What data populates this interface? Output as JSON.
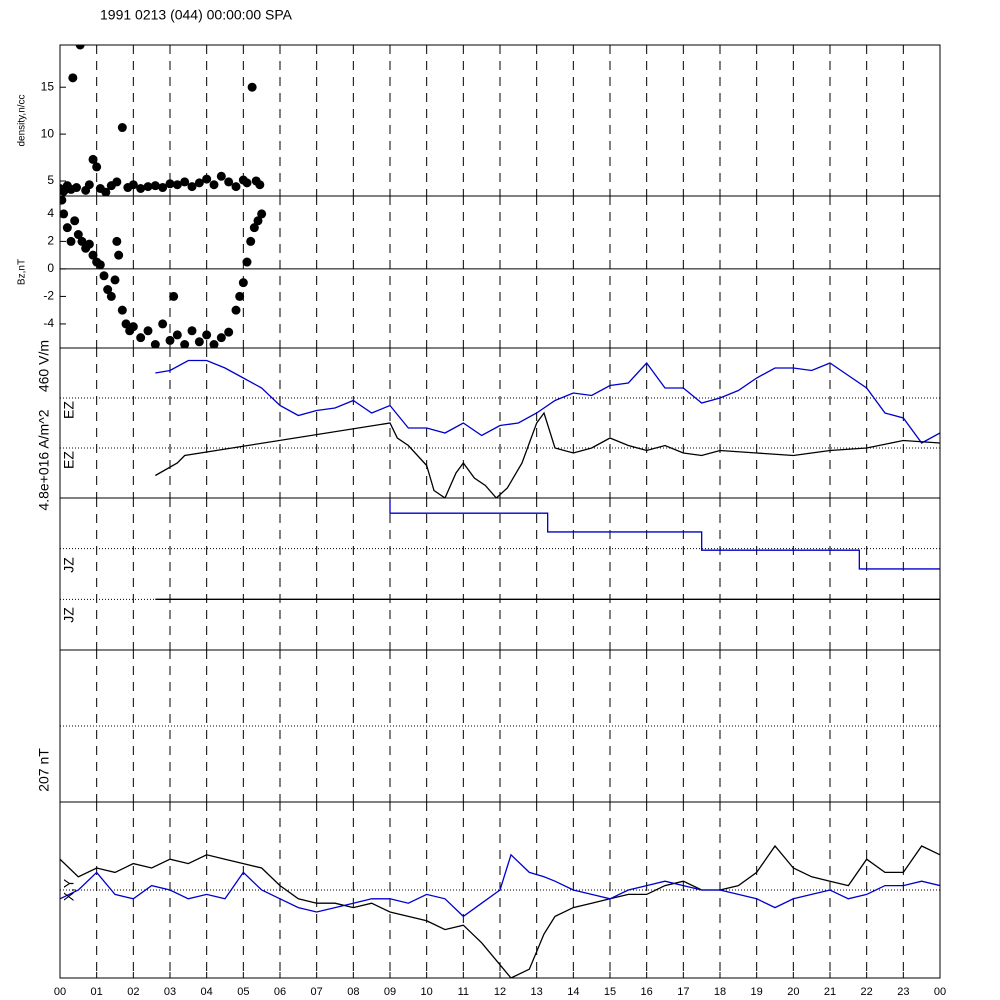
{
  "chart_data": [
    {
      "type": "scatter",
      "title": "1991 0213 (044) 00:00:00 SPA",
      "ylabel": "density,n/cc",
      "color": "#000000",
      "ylim": [
        3.4,
        19.5
      ],
      "yticks": [
        5,
        10,
        15
      ],
      "x": [
        0.0,
        0.1,
        0.2,
        0.3,
        0.35,
        0.45,
        0.55,
        0.7,
        0.8,
        0.9,
        1.0,
        1.1,
        1.25,
        1.4,
        1.55,
        1.7,
        1.85,
        2.0,
        2.2,
        2.4,
        2.6,
        2.8,
        3.0,
        3.2,
        3.4,
        3.6,
        3.8,
        4.0,
        4.2,
        4.4,
        4.6,
        4.8,
        5.0,
        5.1,
        5.24,
        5.35,
        5.45
      ],
      "values": [
        4.2,
        3.9,
        4.5,
        4.1,
        16,
        4.3,
        19.5,
        4.0,
        4.6,
        7.3,
        6.5,
        4.2,
        3.8,
        4.5,
        4.9,
        10.7,
        4.3,
        4.6,
        4.2,
        4.4,
        4.5,
        4.3,
        4.7,
        4.6,
        4.9,
        4.4,
        4.8,
        5.2,
        4.6,
        5.5,
        4.9,
        4.4,
        5.1,
        4.8,
        15,
        5.0,
        4.6
      ]
    },
    {
      "type": "scatter",
      "ylabel": "Bz,nT",
      "color": "#000000",
      "ylim": [
        -5.75,
        5.3
      ],
      "yticks": [
        4,
        2,
        0,
        -2,
        -4
      ],
      "x": [
        0.05,
        0.1,
        0.2,
        0.3,
        0.4,
        0.5,
        0.6,
        0.7,
        0.8,
        0.9,
        1.0,
        1.1,
        1.2,
        1.3,
        1.4,
        1.5,
        1.55,
        1.6,
        1.7,
        1.8,
        1.9,
        2.0,
        2.2,
        2.4,
        2.6,
        2.8,
        3.0,
        3.1,
        3.2,
        3.4,
        3.6,
        3.8,
        4.0,
        4.2,
        4.4,
        4.6,
        4.8,
        4.9,
        5.0,
        5.1,
        5.2,
        5.3,
        5.4,
        5.5
      ],
      "values": [
        5.0,
        4.0,
        3.0,
        2.0,
        3.5,
        2.5,
        2.0,
        1.5,
        1.8,
        1.0,
        0.5,
        0.3,
        -0.5,
        -1.5,
        -2.0,
        -0.8,
        2.0,
        1.0,
        -3.0,
        -4.0,
        -4.5,
        -4.2,
        -5.0,
        -4.5,
        -5.5,
        -4.0,
        -5.2,
        -2.0,
        -4.8,
        -5.5,
        -4.5,
        -5.3,
        -4.8,
        -5.5,
        -5.0,
        -4.6,
        -3.0,
        -2.0,
        -1.0,
        0.5,
        2.0,
        3.0,
        3.5,
        4.0
      ]
    },
    {
      "type": "line",
      "labels": [
        "460 V/m",
        "EZ",
        "EZ"
      ],
      "ylim": [
        0,
        3
      ],
      "series": [
        {
          "color": "#0000cc",
          "x": [
            2.6,
            3.0,
            3.5,
            4.0,
            4.5,
            5.0,
            5.5,
            6.0,
            6.5,
            7.0,
            7.5,
            8.0,
            8.5,
            9.0,
            9.5,
            10.0,
            10.5,
            11.0,
            11.5,
            12.0,
            12.5,
            13.0,
            13.5,
            14.0,
            14.5,
            15.0,
            15.5,
            16.0,
            16.5,
            17.0,
            17.5,
            18.0,
            18.5,
            19.0,
            19.5,
            20.0,
            20.5,
            21.0,
            21.5,
            22.0,
            22.5,
            23.0,
            23.5,
            24.0
          ],
          "values": [
            2.5,
            2.55,
            2.75,
            2.75,
            2.6,
            2.4,
            2.2,
            1.85,
            1.65,
            1.75,
            1.8,
            1.95,
            1.7,
            1.85,
            1.4,
            1.4,
            1.3,
            1.5,
            1.25,
            1.45,
            1.5,
            1.7,
            1.95,
            2.1,
            2.05,
            2.25,
            2.3,
            2.7,
            2.2,
            2.2,
            1.9,
            2.0,
            2.15,
            2.4,
            2.6,
            2.6,
            2.55,
            2.7,
            2.45,
            2.2,
            1.7,
            1.6,
            1.1,
            1.3
          ]
        },
        {
          "color": "#000000",
          "x": [
            2.6,
            3.2,
            3.4,
            9.0,
            9.2,
            9.5,
            10.0,
            10.2,
            10.5,
            10.8,
            11.0,
            11.3,
            11.6,
            11.9,
            12.2,
            12.6,
            13.0,
            13.2,
            13.5,
            14.0,
            14.5,
            15.0,
            15.5,
            16.0,
            16.5,
            17.0,
            17.5,
            18.0,
            19.0,
            20.0,
            21.0,
            22.0,
            23.0,
            24.0
          ],
          "values": [
            0.45,
            0.7,
            0.85,
            1.5,
            1.2,
            1.05,
            0.65,
            0.15,
            0.0,
            0.5,
            0.7,
            0.4,
            0.25,
            0.0,
            0.2,
            0.7,
            1.5,
            1.7,
            1.0,
            0.9,
            1.0,
            1.2,
            1.05,
            0.95,
            1.05,
            0.9,
            0.85,
            0.95,
            0.9,
            0.85,
            0.95,
            1.0,
            1.15,
            1.1
          ]
        }
      ]
    },
    {
      "type": "line",
      "labels": [
        "4.8e+016 A/m^2",
        "JZ",
        "JZ"
      ],
      "ylim": [
        0,
        3
      ],
      "series": [
        {
          "color": "#0000cc",
          "x": [
            9.0,
            9.0,
            13.3,
            13.3,
            17.5,
            17.5,
            21.8,
            21.8,
            24.0
          ],
          "values": [
            2.97,
            2.7,
            2.7,
            2.33,
            2.33,
            1.97,
            1.97,
            1.6,
            1.6
          ]
        },
        {
          "color": "#000000",
          "x": [
            2.6,
            24.0
          ],
          "values": [
            1.0,
            1.0
          ]
        }
      ]
    },
    {
      "type": "line",
      "ylim": [
        0,
        2
      ],
      "series": []
    },
    {
      "type": "line",
      "labels": [
        "207 nT",
        "X,Y"
      ],
      "ylim": [
        -1,
        1
      ],
      "xlabel": "UT",
      "xlim": [
        0,
        24
      ],
      "xticks": [
        {
          "value": 0,
          "label": "00"
        },
        {
          "value": 1,
          "label": "01"
        },
        {
          "value": 2,
          "label": "02"
        },
        {
          "value": 3,
          "label": "03"
        },
        {
          "value": 4,
          "label": "04"
        },
        {
          "value": 5,
          "label": "05"
        },
        {
          "value": 6,
          "label": "06"
        },
        {
          "value": 7,
          "label": "07"
        },
        {
          "value": 8,
          "label": "08"
        },
        {
          "value": 9,
          "label": "09"
        },
        {
          "value": 10,
          "label": "10"
        },
        {
          "value": 11,
          "label": "11"
        },
        {
          "value": 12,
          "label": "12"
        },
        {
          "value": 13,
          "label": "13"
        },
        {
          "value": 14,
          "label": "14"
        },
        {
          "value": 15,
          "label": "15"
        },
        {
          "value": 16,
          "label": "16"
        },
        {
          "value": 17,
          "label": "17"
        },
        {
          "value": 18,
          "label": "18"
        },
        {
          "value": 19,
          "label": "19"
        },
        {
          "value": 20,
          "label": "20"
        },
        {
          "value": 21,
          "label": "21"
        },
        {
          "value": 22,
          "label": "22"
        },
        {
          "value": 23,
          "label": "23"
        },
        {
          "value": 24,
          "label": "00"
        }
      ],
      "series": [
        {
          "color": "#000000",
          "x": [
            0,
            0.5,
            1.0,
            1.5,
            2.0,
            2.5,
            3.0,
            3.5,
            4.0,
            4.5,
            5.0,
            5.5,
            6.0,
            6.5,
            7.0,
            7.5,
            8.0,
            8.5,
            9.0,
            9.5,
            10.0,
            10.5,
            11.0,
            11.5,
            12.0,
            12.3,
            12.8,
            13.2,
            13.5,
            14.0,
            14.5,
            15.0,
            15.5,
            16.0,
            16.5,
            17.0,
            17.5,
            18.0,
            18.5,
            19.0,
            19.5,
            20.0,
            20.5,
            21.0,
            21.5,
            22.0,
            22.5,
            23.0,
            23.5,
            24.0
          ],
          "values": [
            0.35,
            0.15,
            0.25,
            0.2,
            0.3,
            0.25,
            0.35,
            0.3,
            0.4,
            0.35,
            0.3,
            0.25,
            0.05,
            -0.1,
            -0.15,
            -0.15,
            -0.2,
            -0.15,
            -0.25,
            -0.3,
            -0.35,
            -0.45,
            -0.4,
            -0.6,
            -0.85,
            -1.0,
            -0.9,
            -0.5,
            -0.3,
            -0.2,
            -0.15,
            -0.1,
            -0.05,
            -0.05,
            0.05,
            0.1,
            0.0,
            0.0,
            0.05,
            0.2,
            0.5,
            0.25,
            0.15,
            0.1,
            0.05,
            0.35,
            0.2,
            0.2,
            0.5,
            0.4
          ]
        },
        {
          "color": "#0000cc",
          "x": [
            0,
            0.5,
            1.0,
            1.5,
            2.0,
            2.5,
            3.0,
            3.5,
            4.0,
            4.5,
            5.0,
            5.5,
            6.0,
            6.5,
            7.0,
            7.5,
            8.0,
            8.5,
            9.0,
            9.5,
            10.0,
            10.5,
            11.0,
            11.5,
            12.0,
            12.3,
            12.8,
            13.2,
            13.5,
            14.0,
            14.5,
            15.0,
            15.5,
            16.0,
            16.5,
            17.0,
            17.5,
            18.0,
            18.5,
            19.0,
            19.5,
            20.0,
            20.5,
            21.0,
            21.5,
            22.0,
            22.5,
            23.0,
            23.5,
            24.0
          ],
          "values": [
            -0.1,
            0.0,
            0.2,
            -0.05,
            -0.1,
            0.05,
            0.0,
            -0.1,
            -0.05,
            -0.1,
            0.2,
            0.0,
            -0.1,
            -0.2,
            -0.25,
            -0.2,
            -0.15,
            -0.1,
            -0.1,
            -0.15,
            -0.05,
            -0.1,
            -0.3,
            -0.15,
            0.0,
            0.4,
            0.2,
            0.15,
            0.1,
            0.0,
            -0.05,
            -0.1,
            0.0,
            0.05,
            0.1,
            0.05,
            0.0,
            0.0,
            -0.05,
            -0.1,
            -0.2,
            -0.1,
            -0.05,
            0.0,
            -0.1,
            -0.05,
            0.05,
            0.05,
            0.1,
            0.05
          ]
        }
      ]
    }
  ]
}
